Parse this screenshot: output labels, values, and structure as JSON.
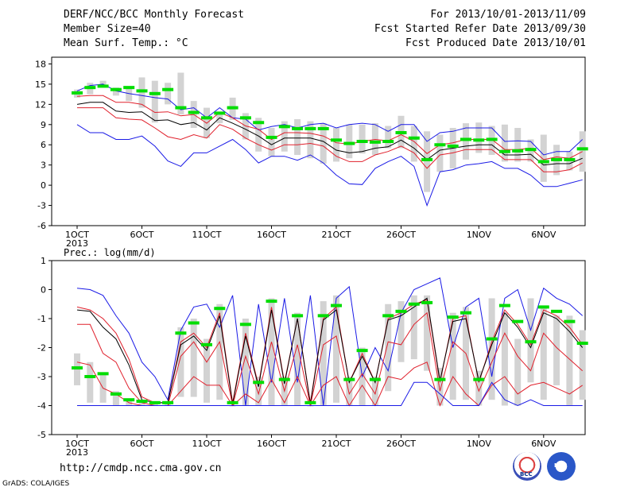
{
  "header": {
    "title": "DERF/NCC/BCC Monthly Forecast",
    "member_size": "Member Size=40",
    "variable": "Mean Surf. Temp.: °C",
    "period": "For 2013/10/01-2013/11/09",
    "started": "Fcst Started Refer Date 2013/09/30",
    "produced": "Fcst Produced Date 2013/10/01"
  },
  "footer": {
    "url": "http://cmdp.ncc.cma.gov.cn",
    "credit": "GrADS: COLA/IGES",
    "logo_bcc": "BCC",
    "logo_ncc": "NCC"
  },
  "colors": {
    "box": "#d3d3d3",
    "median": "#00dd00",
    "mean": "#000000",
    "sigma": "#e0202c",
    "envelope": "#1a1ae6"
  },
  "chart_data": [
    {
      "type": "line",
      "title": "Mean Surf. Temp.: °C",
      "x_tick_labels": [
        "1OCT\n2013",
        "6OCT",
        "11OCT",
        "16OCT",
        "21OCT",
        "26OCT",
        "1NOV",
        "6NOV"
      ],
      "x_tick_days": [
        1,
        6,
        11,
        16,
        21,
        26,
        32,
        37
      ],
      "ylim": [
        -6,
        19
      ],
      "y_ticks": [
        -6,
        -3,
        0,
        3,
        6,
        9,
        12,
        15,
        18
      ],
      "days": [
        1,
        2,
        3,
        4,
        5,
        6,
        7,
        8,
        9,
        10,
        11,
        12,
        13,
        14,
        15,
        16,
        17,
        18,
        19,
        20,
        21,
        22,
        23,
        24,
        25,
        26,
        27,
        28,
        29,
        30,
        31,
        32,
        33,
        34,
        35,
        36,
        37,
        38,
        39,
        40
      ],
      "box_top": [
        14.2,
        15.2,
        15.5,
        14.5,
        14.7,
        16.0,
        15.5,
        15.2,
        16.7,
        12.5,
        11.5,
        10.5,
        13.0,
        10.7,
        10.0,
        8.5,
        9.5,
        9.8,
        9.5,
        9.2,
        8.5,
        9.0,
        9.0,
        9.2,
        8.8,
        10.3,
        8.8,
        8.0,
        7.5,
        8.5,
        9.2,
        9.3,
        8.8,
        9.0,
        8.5,
        6.8,
        7.5,
        6.0,
        5.0,
        8.0
      ],
      "box_bottom": [
        13.0,
        13.5,
        14.5,
        13.3,
        12.5,
        11.5,
        9.3,
        12.0,
        10.5,
        8.5,
        7.0,
        9.2,
        9.7,
        6.8,
        5.0,
        4.3,
        5.0,
        4.5,
        4.0,
        3.2,
        3.5,
        4.0,
        4.7,
        4.5,
        5.5,
        5.5,
        3.5,
        -1.0,
        2.0,
        2.5,
        3.8,
        4.8,
        4.5,
        3.5,
        3.5,
        3.5,
        0.5,
        1.5,
        2.2,
        2.0
      ],
      "median": [
        13.7,
        14.5,
        14.7,
        14.2,
        14.5,
        14.0,
        13.6,
        14.2,
        11.5,
        10.8,
        10.0,
        10.7,
        11.5,
        10.0,
        9.3,
        7.1,
        8.7,
        8.4,
        8.4,
        8.4,
        6.7,
        6.2,
        6.5,
        6.4,
        6.5,
        7.8,
        7.0,
        3.8,
        6.0,
        5.8,
        6.8,
        6.7,
        6.8,
        5.0,
        5.1,
        5.3,
        3.5,
        3.8,
        3.8,
        5.4
      ],
      "series": [
        {
          "name": "max",
          "role": "envelope",
          "values": [
            14.0,
            14.8,
            15.0,
            14.0,
            13.6,
            13.3,
            13.0,
            12.8,
            11.2,
            11.5,
            10.0,
            11.5,
            10.0,
            9.8,
            8.2,
            8.7,
            9.0,
            8.5,
            9.0,
            9.2,
            8.5,
            9.0,
            9.2,
            9.0,
            8.0,
            9.0,
            9.0,
            6.5,
            7.8,
            8.0,
            8.5,
            8.5,
            8.5,
            6.5,
            6.6,
            6.5,
            4.5,
            5.0,
            5.0,
            6.8
          ]
        },
        {
          "name": "mean_plus_sd",
          "role": "sigma",
          "values": [
            13.2,
            13.3,
            13.3,
            12.3,
            12.3,
            12.0,
            10.8,
            10.9,
            10.3,
            10.5,
            9.2,
            10.8,
            10.0,
            8.8,
            8.3,
            6.8,
            7.8,
            7.8,
            7.7,
            7.3,
            6.3,
            6.1,
            6.5,
            6.8,
            6.6,
            7.5,
            6.5,
            4.7,
            6.0,
            6.3,
            6.8,
            6.8,
            6.8,
            5.3,
            5.3,
            5.5,
            3.8,
            4.2,
            4.0,
            5.0
          ]
        },
        {
          "name": "mean",
          "role": "mean",
          "values": [
            12.0,
            12.3,
            12.3,
            11.0,
            10.8,
            10.9,
            9.6,
            9.7,
            9.0,
            9.3,
            8.2,
            10.0,
            9.2,
            8.3,
            7.3,
            6.0,
            7.0,
            7.0,
            7.0,
            6.5,
            5.2,
            4.8,
            5.0,
            5.5,
            5.7,
            6.7,
            5.5,
            3.8,
            5.2,
            5.5,
            5.8,
            6.0,
            6.0,
            4.5,
            4.5,
            4.6,
            3.0,
            3.2,
            3.2,
            4.0
          ]
        },
        {
          "name": "mean_minus_sd",
          "role": "sigma",
          "values": [
            11.5,
            11.5,
            11.5,
            10.0,
            9.8,
            9.7,
            8.5,
            7.2,
            6.8,
            7.5,
            7.0,
            9.0,
            8.3,
            7.0,
            6.0,
            5.2,
            6.0,
            6.0,
            6.2,
            5.8,
            4.3,
            3.5,
            3.5,
            4.5,
            5.0,
            5.8,
            4.8,
            2.5,
            4.5,
            4.8,
            5.3,
            5.3,
            5.3,
            3.8,
            3.8,
            3.8,
            2.0,
            2.0,
            2.3,
            3.3
          ]
        },
        {
          "name": "min",
          "role": "envelope",
          "values": [
            9.0,
            7.8,
            7.8,
            6.8,
            6.8,
            7.3,
            5.8,
            3.6,
            2.8,
            4.8,
            4.8,
            5.8,
            6.8,
            5.3,
            3.3,
            4.3,
            4.3,
            3.7,
            4.5,
            3.3,
            1.5,
            0.2,
            0.1,
            2.5,
            3.5,
            4.3,
            2.8,
            -3.0,
            2.0,
            2.3,
            3.0,
            3.2,
            3.5,
            2.5,
            2.5,
            1.5,
            -0.2,
            -0.2,
            0.3,
            0.8
          ]
        }
      ]
    },
    {
      "type": "line",
      "title": "Prec.: log(mm/d)",
      "x_tick_labels": [
        "1OCT\n2013",
        "6OCT",
        "11OCT",
        "16OCT",
        "21OCT",
        "26OCT",
        "1NOV",
        "6NOV"
      ],
      "x_tick_days": [
        1,
        6,
        11,
        16,
        21,
        26,
        32,
        37
      ],
      "ylim": [
        -5,
        1
      ],
      "y_ticks": [
        -5,
        -4,
        -3,
        -2,
        -1,
        0,
        1
      ],
      "days": [
        1,
        2,
        3,
        4,
        5,
        6,
        7,
        8,
        9,
        10,
        11,
        12,
        13,
        14,
        15,
        16,
        17,
        18,
        19,
        20,
        21,
        22,
        23,
        24,
        25,
        26,
        27,
        28,
        29,
        30,
        31,
        32,
        33,
        34,
        35,
        36,
        37,
        38,
        39,
        40
      ],
      "box_top": [
        -2.2,
        -2.5,
        -2.9,
        -3.5,
        -3.8,
        -3.9,
        -3.9,
        -3.9,
        -1.3,
        -1.0,
        -1.7,
        -0.5,
        -4.0,
        -1.0,
        -3.0,
        -0.3,
        -3.0,
        -0.8,
        -4.0,
        -0.4,
        -0.2,
        -3.0,
        -2.0,
        -3.0,
        -0.5,
        -0.4,
        -0.2,
        -0.2,
        -2.7,
        -0.8,
        -0.6,
        -2.8,
        -0.3,
        -0.8,
        -1.7,
        -0.3,
        -0.6,
        -0.9,
        -0.9,
        -1.4
      ],
      "box_bottom": [
        -3.3,
        -3.9,
        -3.9,
        -4.0,
        -4.0,
        -4.0,
        -4.0,
        -4.0,
        -3.7,
        -3.7,
        -3.9,
        -3.8,
        -4.0,
        -4.0,
        -4.0,
        -4.0,
        -4.0,
        -4.0,
        -4.0,
        -4.0,
        -3.9,
        -4.0,
        -4.0,
        -4.0,
        -3.5,
        -2.5,
        -2.4,
        -2.8,
        -4.0,
        -3.8,
        -3.8,
        -4.0,
        -3.8,
        -4.0,
        -4.0,
        -3.2,
        -3.8,
        -3.3,
        -4.0,
        -3.8
      ],
      "median": [
        -2.7,
        -3.0,
        -2.9,
        -3.6,
        -3.8,
        -3.85,
        -3.9,
        -3.9,
        -1.5,
        -1.15,
        -1.9,
        -0.65,
        -3.9,
        -1.2,
        -3.2,
        -0.4,
        -3.1,
        -0.9,
        -3.9,
        -0.9,
        -0.55,
        -3.1,
        -2.1,
        -3.1,
        -0.9,
        -0.75,
        -0.5,
        -0.45,
        -3.1,
        -0.95,
        -0.8,
        -3.1,
        -1.7,
        -0.55,
        -1.1,
        -1.8,
        -0.6,
        -0.75,
        -1.1,
        -1.85
      ],
      "series": [
        {
          "name": "max",
          "role": "envelope",
          "values": [
            0.05,
            0.0,
            -0.2,
            -0.9,
            -1.5,
            -2.5,
            -3.0,
            -3.8,
            -1.4,
            -0.6,
            -0.5,
            -1.3,
            -0.2,
            -4.0,
            -0.5,
            -3.2,
            -0.3,
            -3.2,
            -0.2,
            -4.0,
            -0.3,
            0.1,
            -3.0,
            -2.0,
            -2.8,
            -0.8,
            0.0,
            0.2,
            0.4,
            -2.0,
            -0.6,
            -0.3,
            -3.0,
            -0.3,
            0.0,
            -1.4,
            0.05,
            -0.3,
            -0.5,
            -0.9
          ]
        },
        {
          "name": "mean_plus_sd",
          "role": "sigma",
          "values": [
            -0.6,
            -0.7,
            -1.0,
            -1.5,
            -2.4,
            -3.7,
            -3.9,
            -3.9,
            -1.8,
            -1.5,
            -2.0,
            -0.8,
            -3.9,
            -1.5,
            -3.3,
            -0.6,
            -3.2,
            -1.0,
            -3.9,
            -1.0,
            -0.6,
            -3.2,
            -2.2,
            -3.2,
            -1.0,
            -0.8,
            -0.5,
            -0.35,
            -3.2,
            -1.0,
            -0.9,
            -3.2,
            -1.8,
            -0.7,
            -1.2,
            -1.9,
            -0.7,
            -0.9,
            -1.3,
            -1.9
          ]
        },
        {
          "name": "mean",
          "role": "mean",
          "values": [
            -0.7,
            -0.75,
            -1.3,
            -1.7,
            -2.6,
            -3.8,
            -3.9,
            -3.9,
            -1.9,
            -1.6,
            -2.1,
            -0.9,
            -3.95,
            -1.6,
            -3.35,
            -0.7,
            -3.25,
            -1.0,
            -3.95,
            -1.05,
            -0.7,
            -3.2,
            -2.3,
            -3.2,
            -1.05,
            -0.9,
            -0.6,
            -0.3,
            -3.15,
            -1.1,
            -1.0,
            -3.15,
            -1.9,
            -0.8,
            -1.3,
            -2.0,
            -0.8,
            -1.0,
            -1.45,
            -2.0
          ]
        },
        {
          "name": "mean_minus_sd",
          "role": "sigma",
          "values": [
            -1.2,
            -1.2,
            -2.2,
            -2.5,
            -3.4,
            -3.9,
            -4.0,
            -4.0,
            -2.3,
            -1.8,
            -2.5,
            -1.8,
            -4.0,
            -2.3,
            -3.6,
            -1.8,
            -3.5,
            -1.9,
            -4.0,
            -1.9,
            -1.6,
            -3.6,
            -2.9,
            -3.6,
            -1.8,
            -1.9,
            -1.2,
            -0.8,
            -3.5,
            -1.8,
            -2.2,
            -3.5,
            -2.5,
            -1.5,
            -2.3,
            -2.8,
            -1.5,
            -2.0,
            -2.4,
            -2.8
          ]
        },
        {
          "name": "mean_minus_2sd",
          "role": "sigma2",
          "values": [
            -2.5,
            -2.6,
            -3.4,
            -3.6,
            -3.9,
            -4.0,
            -4.0,
            -4.0,
            -3.5,
            -3.0,
            -3.3,
            -3.3,
            -4.0,
            -3.6,
            -3.9,
            -3.1,
            -3.9,
            -3.0,
            -4.0,
            -3.3,
            -3.0,
            -4.0,
            -3.3,
            -4.0,
            -3.0,
            -3.1,
            -2.7,
            -2.5,
            -4.0,
            -3.0,
            -3.6,
            -4.0,
            -3.3,
            -3.0,
            -3.6,
            -3.3,
            -3.2,
            -3.4,
            -3.6,
            -3.3
          ]
        },
        {
          "name": "min",
          "role": "envelope",
          "values": [
            -4.0,
            -4.0,
            -4.0,
            -4.0,
            -4.0,
            -4.0,
            -4.0,
            -4.0,
            -4.0,
            -4.0,
            -4.0,
            -4.0,
            -4.0,
            -4.0,
            -4.0,
            -4.0,
            -4.0,
            -4.0,
            -4.0,
            -4.0,
            -4.0,
            -4.0,
            -4.0,
            -4.0,
            -4.0,
            -4.0,
            -3.2,
            -3.2,
            -3.6,
            -4.0,
            -4.0,
            -4.0,
            -3.2,
            -3.8,
            -4.0,
            -3.8,
            -4.0,
            -4.0,
            -4.0,
            -4.0
          ]
        }
      ]
    }
  ]
}
